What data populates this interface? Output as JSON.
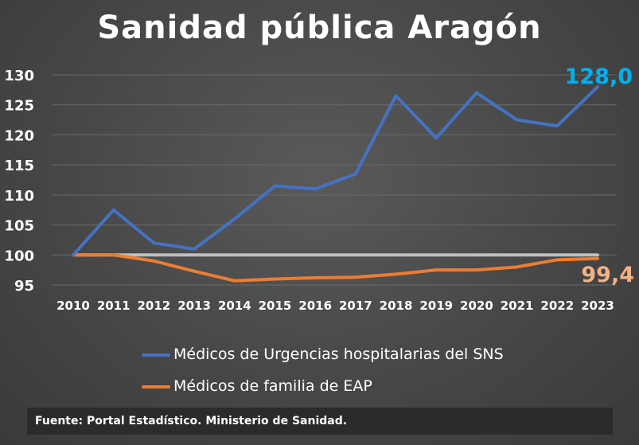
{
  "chart_data": {
    "type": "line",
    "title": "Sanidad pública Aragón",
    "x": [
      "2010",
      "2011",
      "2012",
      "2013",
      "2014",
      "2015",
      "2016",
      "2017",
      "2018",
      "2019",
      "2020",
      "2021",
      "2022",
      "2023"
    ],
    "series": [
      {
        "name": "Médicos de Urgencias hospitalarias del SNS",
        "color": "#4472C4",
        "values": [
          100,
          107.5,
          102,
          101,
          106,
          111.5,
          111,
          113.5,
          126.5,
          119.5,
          127,
          122.5,
          121.5,
          128.0
        ]
      },
      {
        "name": "Médicos de familia de EAP",
        "color": "#ED7D31",
        "values": [
          100,
          100,
          99,
          97.3,
          95.7,
          96.0,
          96.2,
          96.3,
          96.8,
          97.5,
          97.5,
          98.0,
          99.2,
          99.4
        ]
      }
    ],
    "reference_line": {
      "value": 100,
      "color": "#BFBFBF"
    },
    "ylim": [
      95,
      130
    ],
    "yticks": [
      "95",
      "100",
      "105",
      "110",
      "115",
      "120",
      "125",
      "130"
    ],
    "end_labels": [
      {
        "text": "128,0",
        "color": "#00B0F0"
      },
      {
        "text": "99,4",
        "color": "#F4B183"
      }
    ],
    "grid": true,
    "legend": "bottom"
  },
  "source": "Fuente: Portal Estadístico. Ministerio de Sanidad."
}
